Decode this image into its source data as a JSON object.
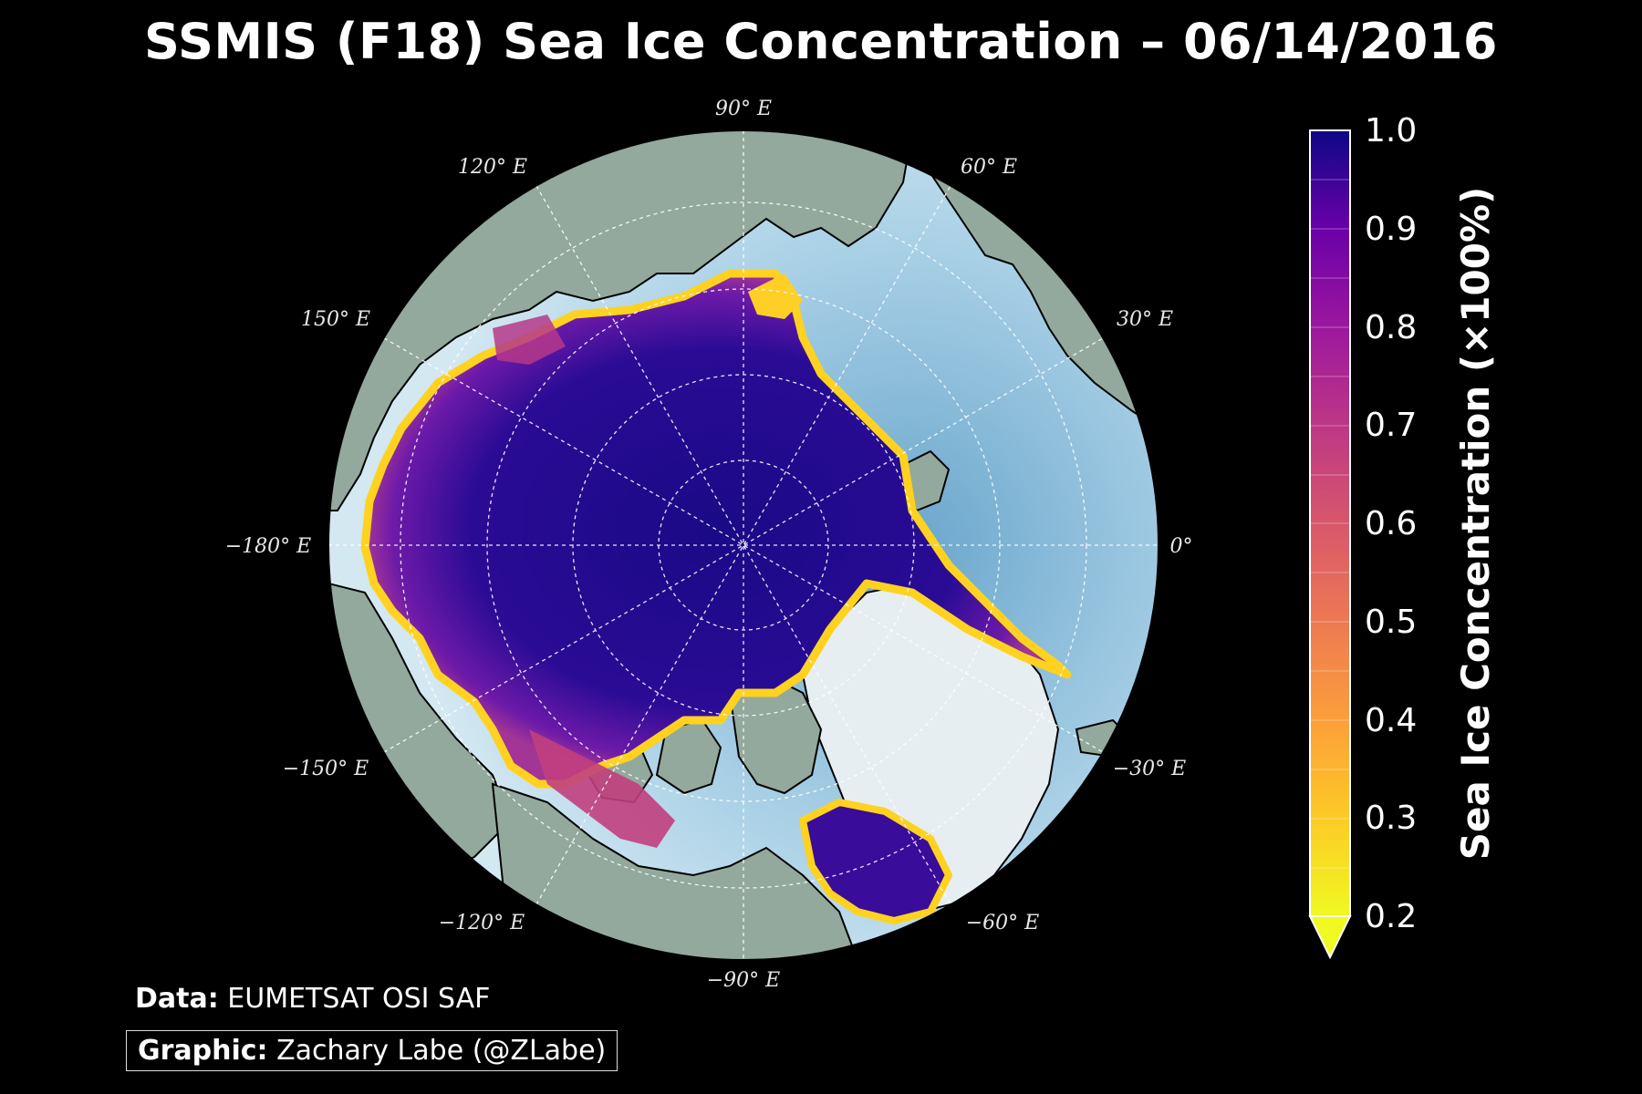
{
  "title": "SSMIS (F18) Sea Ice Concentration – 06/14/2016",
  "map": {
    "projection": "north polar stereographic",
    "date": "06/14/2016",
    "lon_labels": [
      {
        "text": "90° E",
        "lon": 90
      },
      {
        "text": "120° E",
        "lon": 120
      },
      {
        "text": "60° E",
        "lon": 60
      },
      {
        "text": "150° E",
        "lon": 150
      },
      {
        "text": "30° E",
        "lon": 30
      },
      {
        "text": "−180° E",
        "lon": -180
      },
      {
        "text": "0°",
        "lon": 0
      },
      {
        "text": "−150° E",
        "lon": -150
      },
      {
        "text": "−30° E",
        "lon": -30
      },
      {
        "text": "−120° E",
        "lon": -120
      },
      {
        "text": "−60° E",
        "lon": -60
      },
      {
        "text": "−90° E",
        "lon": -90
      }
    ],
    "colors": {
      "ocean": "#a9d6ea",
      "land": "#8fa59a",
      "ice_high": "#1e0b8a",
      "ice_mid": "#7b16a8",
      "ice_edge": "#ffd21f"
    }
  },
  "colorbar": {
    "label": "Sea Ice Concentration (×100%)",
    "min": 0.2,
    "max": 1.0,
    "ticks": [
      "1.0",
      "0.9",
      "0.8",
      "0.7",
      "0.6",
      "0.5",
      "0.4",
      "0.3",
      "0.2"
    ],
    "colors": [
      "#f0f921",
      "#fdca26",
      "#fb9f3a",
      "#ed7953",
      "#d8576b",
      "#bd3786",
      "#9c179e",
      "#7201a8",
      "#46039f",
      "#0d0887"
    ]
  },
  "credits": {
    "data_label": "Data:",
    "data_value": "EUMETSAT OSI SAF",
    "graphic_label": "Graphic:",
    "graphic_value": "Zachary Labe (@ZLabe)"
  }
}
